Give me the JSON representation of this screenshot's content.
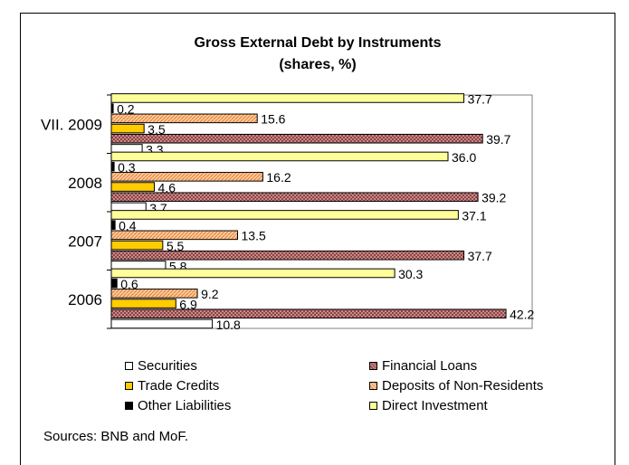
{
  "chart_data": {
    "type": "bar",
    "orientation": "horizontal",
    "title": "Gross External Debt by Instruments",
    "subtitle": "(shares, %)",
    "categories": [
      "VII. 2009",
      "2008",
      "2007",
      "2006"
    ],
    "xlim": [
      0,
      45
    ],
    "series": [
      {
        "name": "Direct Investment",
        "color": "#ffff99",
        "pattern": "solid",
        "values": [
          37.7,
          36.0,
          37.1,
          30.3
        ],
        "labels": [
          "37.7",
          "36.0",
          "37.1",
          "30.3"
        ]
      },
      {
        "name": "Other Liabilities",
        "color": "#000000",
        "pattern": "solid",
        "values": [
          0.2,
          0.3,
          0.4,
          0.6
        ],
        "labels": [
          "0.2",
          "0.3",
          "0.4",
          "0.6"
        ]
      },
      {
        "name": "Deposits of Non-Residents",
        "color": "#ffcc99",
        "pattern": "hatch",
        "values": [
          15.6,
          16.2,
          13.5,
          9.2
        ],
        "labels": [
          "15.6",
          "16.2",
          "13.5",
          "9.2"
        ]
      },
      {
        "name": "Trade Credits",
        "color": "#ffcc00",
        "pattern": "solid",
        "values": [
          3.5,
          4.6,
          5.5,
          6.9
        ],
        "labels": [
          "3.5",
          "4.6",
          "5.5",
          "6.9"
        ]
      },
      {
        "name": "Financial Loans",
        "color": "#c08080",
        "pattern": "crosshatch",
        "values": [
          39.7,
          39.2,
          37.7,
          42.2
        ],
        "labels": [
          "39.7",
          "39.2",
          "37.7",
          "42.2"
        ]
      },
      {
        "name": "Securities",
        "color": "#ffffff",
        "pattern": "solid",
        "values": [
          3.3,
          3.7,
          5.8,
          10.8
        ],
        "labels": [
          "3.3",
          "3.7",
          "5.8",
          "10.8"
        ]
      }
    ],
    "legend": {
      "position": "bottom",
      "items": [
        {
          "label": "Securities",
          "color": "#ffffff"
        },
        {
          "label": "Financial Loans",
          "color": "#c08080"
        },
        {
          "label": "Trade Credits",
          "color": "#ffcc00"
        },
        {
          "label": "Deposits of Non-Residents",
          "color": "#ffcc99"
        },
        {
          "label": "Other Liabilities",
          "color": "#000000"
        },
        {
          "label": "Direct Investment",
          "color": "#ffff99"
        }
      ]
    },
    "grid": false
  },
  "footer": {
    "source": "Sources: BNB and MoF."
  }
}
